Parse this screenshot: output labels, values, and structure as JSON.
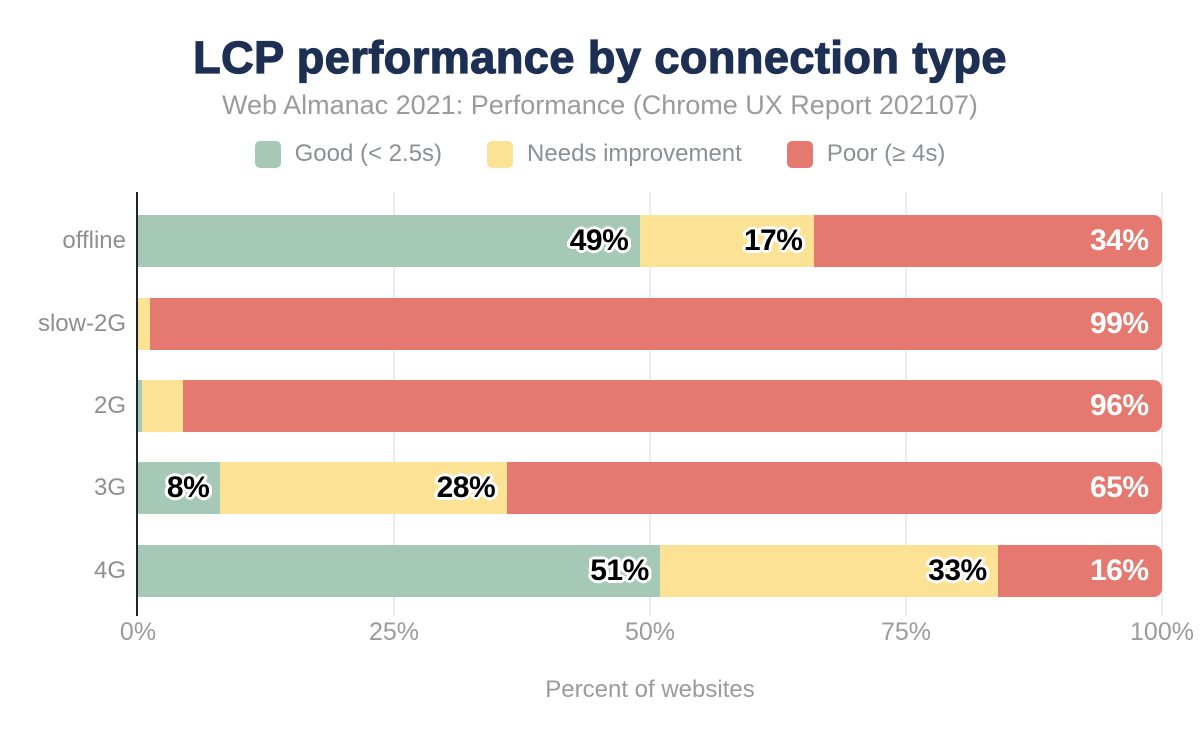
{
  "header": {
    "title": "LCP performance by connection type",
    "subtitle": "Web Almanac 2021: Performance (Chrome UX Report 202107)"
  },
  "chart_data": {
    "type": "bar",
    "stacked": true,
    "orientation": "horizontal",
    "title": "LCP performance by connection type",
    "subtitle": "Web Almanac 2021: Performance (Chrome UX Report 202107)",
    "categories": [
      "offline",
      "slow-2G",
      "2G",
      "3G",
      "4G"
    ],
    "series": [
      {
        "name": "Good (< 2.5s)",
        "color": "#a6c9b7",
        "label_style": "dark",
        "values": [
          49,
          0,
          0,
          8,
          51
        ],
        "render_widths": [
          49,
          0,
          0.4,
          8,
          51
        ]
      },
      {
        "name": "Needs improvement",
        "color": "#fce294",
        "label_style": "dark",
        "values": [
          17,
          1,
          4,
          28,
          33
        ],
        "render_widths": [
          17,
          1.2,
          4,
          28,
          33
        ]
      },
      {
        "name": "Poor (≥ 4s)",
        "color": "#e5796f",
        "label_style": "light",
        "values": [
          34,
          99,
          96,
          65,
          16
        ],
        "render_widths": [
          34,
          98.8,
          95.6,
          64,
          16
        ]
      }
    ],
    "value_suffix": "%",
    "xlabel": "Percent of websites",
    "x_ticks": [
      "0%",
      "25%",
      "50%",
      "75%",
      "100%"
    ],
    "xlim": [
      0,
      100
    ],
    "grid": "vertical",
    "legend_position": "top"
  },
  "style": {
    "title_color": "#1d3053",
    "muted_text_color": "#9b9b9b",
    "axis_line_color": "#20242b",
    "gridline_color": "#ededed"
  }
}
